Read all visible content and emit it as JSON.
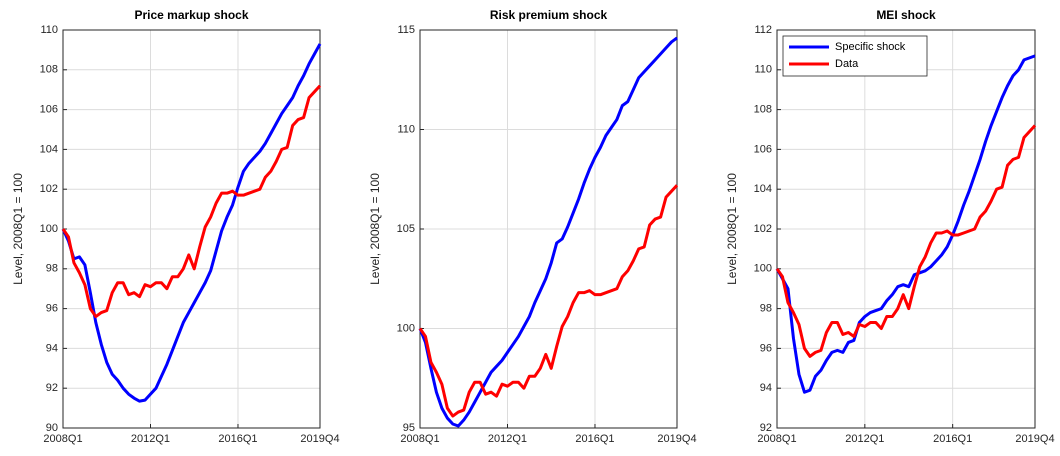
{
  "chart_data": [
    {
      "type": "line",
      "title": "Price markup shock",
      "ylabel": "Level, 2008Q1 = 100",
      "categories": [
        "2008Q1",
        null,
        null,
        null,
        null,
        null,
        null,
        null,
        null,
        null,
        null,
        null,
        null,
        null,
        null,
        null,
        "2012Q1",
        null,
        null,
        null,
        null,
        null,
        null,
        null,
        null,
        null,
        null,
        null,
        null,
        null,
        null,
        null,
        "2016Q1",
        null,
        null,
        null,
        null,
        null,
        null,
        null,
        null,
        null,
        null,
        null,
        null,
        null,
        null,
        "2019Q4"
      ],
      "ylim": [
        90,
        110
      ],
      "yticks": [
        90,
        92,
        94,
        96,
        98,
        100,
        102,
        104,
        106,
        108,
        110
      ],
      "grid": true,
      "series": [
        {
          "color": "#0000ff",
          "values": [
            100,
            99.4,
            98.5,
            98.6,
            98.2,
            96.8,
            95.3,
            94.2,
            93.3,
            92.7,
            92.4,
            92.0,
            91.7,
            91.5,
            91.35,
            91.4,
            91.7,
            92.0,
            92.6,
            93.2,
            93.9,
            94.6,
            95.3,
            95.8,
            96.3,
            96.8,
            97.3,
            97.9,
            98.9,
            99.9,
            100.6,
            101.2,
            102.1,
            102.9,
            103.3,
            103.6,
            103.9,
            104.3,
            104.8,
            105.3,
            105.8,
            106.2,
            106.6,
            107.2,
            107.7,
            108.3,
            108.8,
            109.3
          ]
        },
        {
          "color": "#ff0000",
          "values": [
            100,
            99.6,
            98.3,
            97.8,
            97.2,
            96.0,
            95.6,
            95.8,
            95.9,
            96.8,
            97.3,
            97.3,
            96.7,
            96.8,
            96.6,
            97.2,
            97.1,
            97.3,
            97.3,
            97.0,
            97.6,
            97.6,
            98.0,
            98.7,
            98.0,
            99.1,
            100.1,
            100.6,
            101.3,
            101.8,
            101.8,
            101.9,
            101.7,
            101.7,
            101.8,
            101.9,
            102.0,
            102.6,
            102.9,
            103.4,
            104.0,
            104.1,
            105.2,
            105.5,
            105.6,
            106.6,
            106.9,
            107.2
          ]
        }
      ]
    },
    {
      "type": "line",
      "title": "Risk premium shock",
      "ylabel": "Level, 2008Q1 = 100",
      "categories": [
        "2008Q1",
        null,
        null,
        null,
        null,
        null,
        null,
        null,
        null,
        null,
        null,
        null,
        null,
        null,
        null,
        null,
        "2012Q1",
        null,
        null,
        null,
        null,
        null,
        null,
        null,
        null,
        null,
        null,
        null,
        null,
        null,
        null,
        null,
        "2016Q1",
        null,
        null,
        null,
        null,
        null,
        null,
        null,
        null,
        null,
        null,
        null,
        null,
        null,
        null,
        "2019Q4"
      ],
      "ylim": [
        95,
        115
      ],
      "yticks": [
        95,
        100,
        105,
        110,
        115
      ],
      "grid": true,
      "series": [
        {
          "color": "#0000ff",
          "values": [
            100,
            99.3,
            98.0,
            96.8,
            96.0,
            95.5,
            95.2,
            95.1,
            95.4,
            95.8,
            96.3,
            96.8,
            97.3,
            97.8,
            98.1,
            98.4,
            98.8,
            99.2,
            99.6,
            100.1,
            100.6,
            101.3,
            101.9,
            102.5,
            103.3,
            104.3,
            104.5,
            105.1,
            105.8,
            106.5,
            107.3,
            108.0,
            108.6,
            109.1,
            109.7,
            110.1,
            110.5,
            111.2,
            111.4,
            112.0,
            112.6,
            112.9,
            113.2,
            113.5,
            113.8,
            114.1,
            114.4,
            114.6
          ]
        },
        {
          "color": "#ff0000",
          "values": [
            100,
            99.6,
            98.3,
            97.8,
            97.2,
            96.0,
            95.6,
            95.8,
            95.9,
            96.8,
            97.3,
            97.3,
            96.7,
            96.8,
            96.6,
            97.2,
            97.1,
            97.3,
            97.3,
            97.0,
            97.6,
            97.6,
            98.0,
            98.7,
            98.0,
            99.1,
            100.1,
            100.6,
            101.3,
            101.8,
            101.8,
            101.9,
            101.7,
            101.7,
            101.8,
            101.9,
            102.0,
            102.6,
            102.9,
            103.4,
            104.0,
            104.1,
            105.2,
            105.5,
            105.6,
            106.6,
            106.9,
            107.2
          ]
        }
      ]
    },
    {
      "type": "line",
      "title": "MEI shock",
      "ylabel": "Level, 2008Q1 = 100",
      "categories": [
        "2008Q1",
        null,
        null,
        null,
        null,
        null,
        null,
        null,
        null,
        null,
        null,
        null,
        null,
        null,
        null,
        null,
        "2012Q1",
        null,
        null,
        null,
        null,
        null,
        null,
        null,
        null,
        null,
        null,
        null,
        null,
        null,
        null,
        null,
        "2016Q1",
        null,
        null,
        null,
        null,
        null,
        null,
        null,
        null,
        null,
        null,
        null,
        null,
        null,
        null,
        "2019Q4"
      ],
      "ylim": [
        92,
        112
      ],
      "yticks": [
        92,
        94,
        96,
        98,
        100,
        102,
        104,
        106,
        108,
        110,
        112
      ],
      "grid": true,
      "legend": "upper left",
      "series": [
        {
          "name": "Specific shock",
          "color": "#0000ff",
          "values": [
            100,
            99.5,
            99.0,
            96.5,
            94.7,
            93.8,
            93.9,
            94.6,
            94.9,
            95.4,
            95.8,
            95.9,
            95.8,
            96.3,
            96.4,
            97.3,
            97.6,
            97.8,
            97.9,
            98.0,
            98.4,
            98.7,
            99.1,
            99.2,
            99.1,
            99.7,
            99.8,
            99.9,
            100.1,
            100.4,
            100.7,
            101.1,
            101.7,
            102.4,
            103.2,
            103.9,
            104.7,
            105.5,
            106.4,
            107.2,
            107.9,
            108.6,
            109.2,
            109.7,
            110.0,
            110.5,
            110.6,
            110.7
          ]
        },
        {
          "name": "Data",
          "color": "#ff0000",
          "values": [
            100,
            99.6,
            98.3,
            97.8,
            97.2,
            96.0,
            95.6,
            95.8,
            95.9,
            96.8,
            97.3,
            97.3,
            96.7,
            96.8,
            96.6,
            97.2,
            97.1,
            97.3,
            97.3,
            97.0,
            97.6,
            97.6,
            98.0,
            98.7,
            98.0,
            99.1,
            100.1,
            100.6,
            101.3,
            101.8,
            101.8,
            101.9,
            101.7,
            101.7,
            101.8,
            101.9,
            102.0,
            102.6,
            102.9,
            103.4,
            104.0,
            104.1,
            105.2,
            105.5,
            105.6,
            106.6,
            106.9,
            107.2
          ]
        }
      ]
    }
  ]
}
